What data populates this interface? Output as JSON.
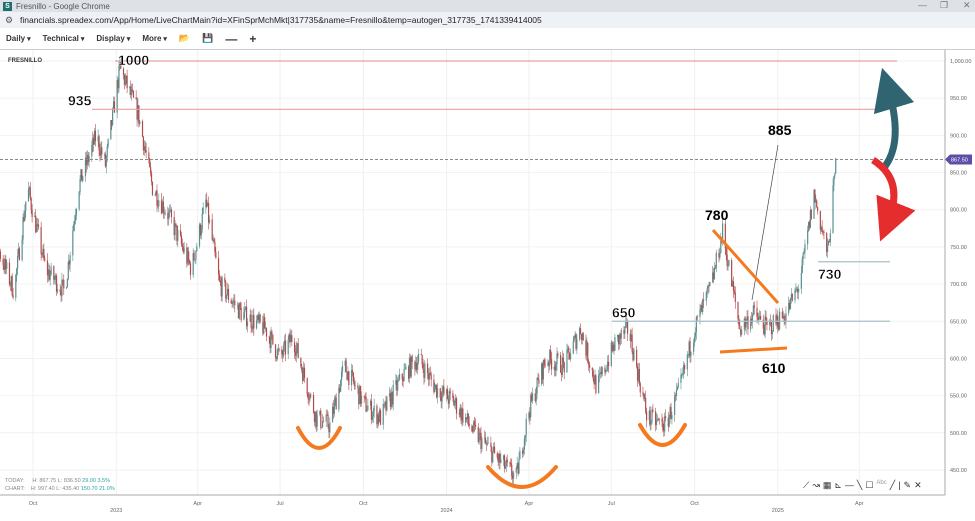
{
  "window": {
    "title": "Fresnillo - Google Chrome",
    "minimize": "—",
    "restore": "❐",
    "close": "✕"
  },
  "address": {
    "url": "financials.spreadex.com/App/Home/LiveChartMain?id=XFinSprMchMkt|317735&name=Fresnillo&temp=autogen_317735_1741339414005"
  },
  "toolbar": {
    "items": [
      "Daily",
      "Technical",
      "Display",
      "More"
    ],
    "icons": [
      "open-folder-icon",
      "save-icon",
      "zoom-out-icon",
      "zoom-in-icon"
    ],
    "minus": "—",
    "plus": "+"
  },
  "chart": {
    "symbol": "FRESNILLO",
    "today": {
      "label": "TODAY:",
      "h": "H: 867.75",
      "l": "L: 836.50",
      "chg": "29.00",
      "pct": "3.5%"
    },
    "chartstats": {
      "label": "CHART:",
      "h": "H: 997.40",
      "l": "L: 435.40",
      "chg": "150.70",
      "pct": "21.0%"
    },
    "drawing_tools": [
      "line-icon",
      "curve-icon",
      "grid-icon",
      "fib-icon",
      "hline-icon",
      "trendline-icon",
      "rect-icon",
      "text-icon",
      "pen-icon",
      "pencil-icon",
      "close-icon"
    ]
  },
  "chart_data": {
    "type": "candlestick",
    "ylim": [
      440,
      1010
    ],
    "yticks": [
      "1,000.00",
      "950.00",
      "900.00",
      "850.00",
      "800.00",
      "750.00",
      "700.00",
      "650.00",
      "600.00",
      "550.00",
      "500.00",
      "450.00"
    ],
    "xticks": [
      {
        "d": "2022-10-01",
        "l": "Oct"
      },
      {
        "d": "2023-01-01",
        "l": "2023"
      },
      {
        "d": "2023-04-01",
        "l": "Apr"
      },
      {
        "d": "2023-07-01",
        "l": "Jul"
      },
      {
        "d": "2023-10-01",
        "l": "Oct"
      },
      {
        "d": "2024-01-01",
        "l": "2024"
      },
      {
        "d": "2024-04-01",
        "l": "Apr"
      },
      {
        "d": "2024-07-01",
        "l": "Jul"
      },
      {
        "d": "2024-10-01",
        "l": "Oct"
      },
      {
        "d": "2025-01-01",
        "l": "2025"
      },
      {
        "d": "2025-04-01",
        "l": "Apr"
      }
    ],
    "last_price": "867.50",
    "path": [
      [
        "2022-08-01",
        700
      ],
      [
        "2022-08-20",
        760
      ],
      [
        "2022-09-10",
        690
      ],
      [
        "2022-09-25",
        830
      ],
      [
        "2022-10-15",
        720
      ],
      [
        "2022-11-05",
        690
      ],
      [
        "2022-11-20",
        830
      ],
      [
        "2022-12-10",
        900
      ],
      [
        "2022-12-20",
        860
      ],
      [
        "2023-01-05",
        990
      ],
      [
        "2023-01-25",
        930
      ],
      [
        "2023-02-10",
        830
      ],
      [
        "2023-03-01",
        790
      ],
      [
        "2023-03-25",
        720
      ],
      [
        "2023-04-10",
        810
      ],
      [
        "2023-04-25",
        700
      ],
      [
        "2023-05-20",
        660
      ],
      [
        "2023-06-15",
        640
      ],
      [
        "2023-07-01",
        600
      ],
      [
        "2023-07-15",
        630
      ],
      [
        "2023-08-10",
        520
      ],
      [
        "2023-08-25",
        510
      ],
      [
        "2023-09-10",
        590
      ],
      [
        "2023-10-01",
        540
      ],
      [
        "2023-10-20",
        520
      ],
      [
        "2023-11-15",
        580
      ],
      [
        "2023-12-01",
        600
      ],
      [
        "2023-12-20",
        560
      ],
      [
        "2024-01-10",
        540
      ],
      [
        "2024-02-01",
        500
      ],
      [
        "2024-03-01",
        460
      ],
      [
        "2024-03-18",
        440
      ],
      [
        "2024-04-01",
        530
      ],
      [
        "2024-04-20",
        600
      ],
      [
        "2024-05-10",
        590
      ],
      [
        "2024-05-28",
        640
      ],
      [
        "2024-06-15",
        560
      ],
      [
        "2024-07-05",
        620
      ],
      [
        "2024-07-20",
        640
      ],
      [
        "2024-08-10",
        520
      ],
      [
        "2024-08-30",
        510
      ],
      [
        "2024-09-15",
        560
      ],
      [
        "2024-10-01",
        640
      ],
      [
        "2024-10-20",
        700
      ],
      [
        "2024-11-01",
        770
      ],
      [
        "2024-11-20",
        640
      ],
      [
        "2024-12-05",
        660
      ],
      [
        "2024-12-20",
        640
      ],
      [
        "2025-01-10",
        660
      ],
      [
        "2025-01-25",
        700
      ],
      [
        "2025-02-10",
        820
      ],
      [
        "2025-02-25",
        740
      ],
      [
        "2025-03-06",
        860
      ]
    ],
    "levels": [
      {
        "v": 1000,
        "label": "1000",
        "color": "#e8a0a0"
      },
      {
        "v": 935,
        "label": "935",
        "color": "#e8a0a0"
      },
      {
        "v": 650,
        "label": "650",
        "color": "#a9c0c8"
      },
      {
        "v": 730,
        "label": "730",
        "color": "#a9c0c8"
      }
    ],
    "labels": [
      {
        "text": "780"
      },
      {
        "text": "610"
      },
      {
        "text": "885"
      }
    ],
    "colors": {
      "up": "#5a8f8f",
      "down": "#b24a4a",
      "orange": "#f47a20",
      "last": "#5b4fa8",
      "arrow_up": "#2f6470",
      "arrow_down": "#e52d2d"
    }
  }
}
